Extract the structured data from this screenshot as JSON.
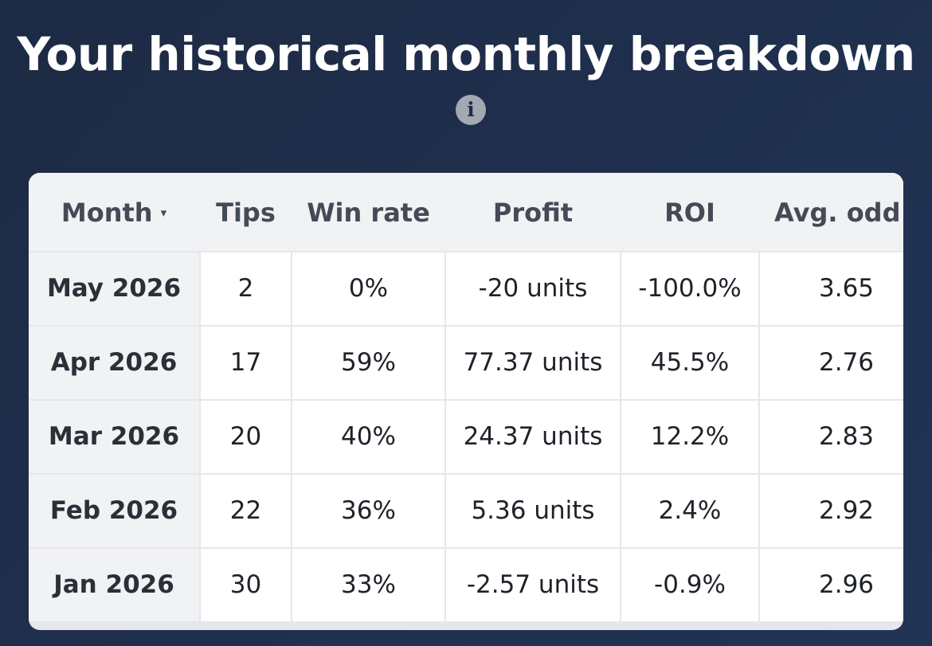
{
  "title": "Your historical monthly breakdown",
  "info_icon_glyph": "i",
  "table": {
    "headers": {
      "month": "Month",
      "sort_indicator": "▾",
      "tips": "Tips",
      "win_rate": "Win rate",
      "profit": "Profit",
      "roi": "ROI",
      "avg_odds": "Avg. odd"
    },
    "rows": [
      {
        "month": "May 2026",
        "tips": "2",
        "win_rate": "0%",
        "profit": "-20 units",
        "roi": "-100.0%",
        "avg_odds": "3.65"
      },
      {
        "month": "Apr 2026",
        "tips": "17",
        "win_rate": "59%",
        "profit": "77.37 units",
        "roi": "45.5%",
        "avg_odds": "2.76"
      },
      {
        "month": "Mar 2026",
        "tips": "20",
        "win_rate": "40%",
        "profit": "24.37 units",
        "roi": "12.2%",
        "avg_odds": "2.83"
      },
      {
        "month": "Feb 2026",
        "tips": "22",
        "win_rate": "36%",
        "profit": "5.36 units",
        "roi": "2.4%",
        "avg_odds": "2.92"
      },
      {
        "month": "Jan 2026",
        "tips": "30",
        "win_rate": "33%",
        "profit": "-2.57 units",
        "roi": "-0.9%",
        "avg_odds": "2.96"
      }
    ]
  }
}
